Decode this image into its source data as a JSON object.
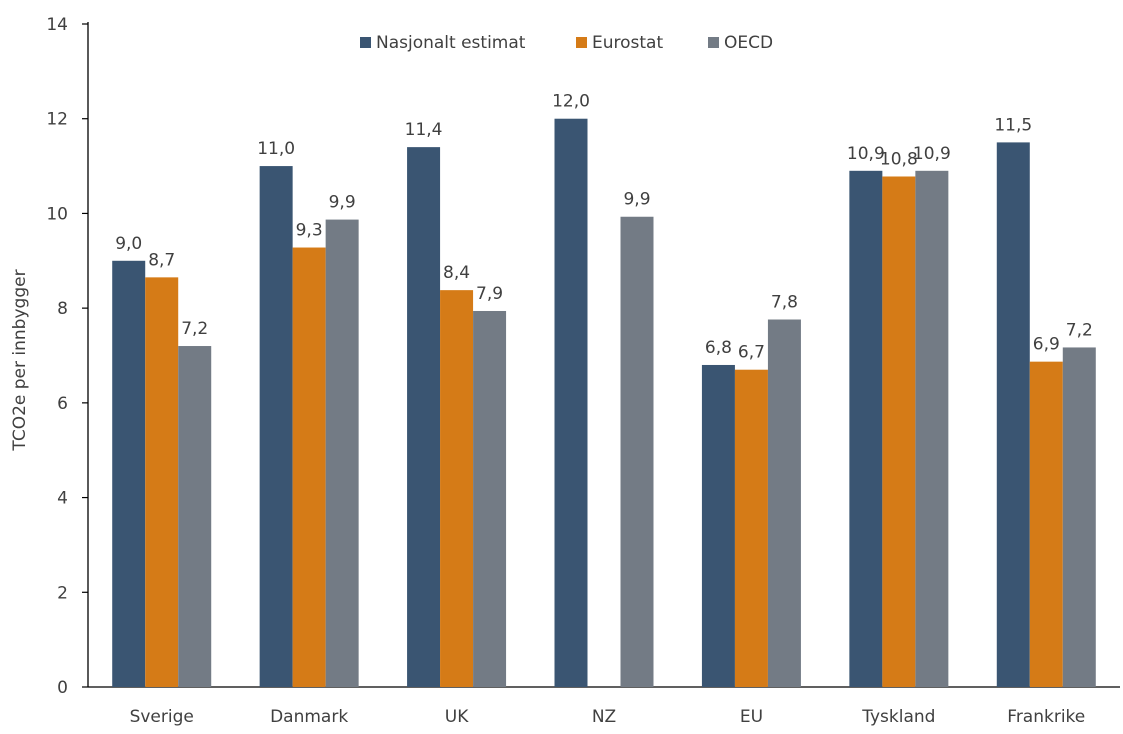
{
  "chart_data": {
    "type": "bar",
    "title": "",
    "xlabel": "",
    "ylabel": "TCO2e per innbygger",
    "ylim": [
      0,
      14
    ],
    "yticks": [
      "0",
      "2",
      "4",
      "6",
      "8",
      "10",
      "12",
      "14"
    ],
    "grid": false,
    "legend_position": "top-center",
    "categories": [
      "Sverige",
      "Danmark",
      "UK",
      "NZ",
      "EU",
      "Tyskland",
      "Frankrike"
    ],
    "series": [
      {
        "name": "Nasjonalt estimat",
        "color": "#3a5572",
        "values": [
          9.0,
          11.0,
          11.4,
          12.0,
          6.8,
          10.9,
          11.5
        ],
        "labels": [
          "9,0",
          "11,0",
          "11,4",
          "12,0",
          "6,8",
          "10,9",
          "11,5"
        ]
      },
      {
        "name": "Eurostat",
        "color": "#d57b17",
        "values": [
          8.65,
          9.28,
          8.38,
          null,
          6.7,
          10.78,
          6.87
        ],
        "labels": [
          "8,7",
          "9,3",
          "8,4",
          null,
          "6,7",
          "10,8",
          "6,9"
        ]
      },
      {
        "name": "OECD",
        "color": "#737b85",
        "values": [
          7.2,
          9.87,
          7.94,
          9.93,
          7.76,
          10.9,
          7.17
        ],
        "labels": [
          "7,2",
          "9,9",
          "7,9",
          "9,9",
          "7,8",
          "10,9",
          "7,2"
        ]
      }
    ]
  }
}
